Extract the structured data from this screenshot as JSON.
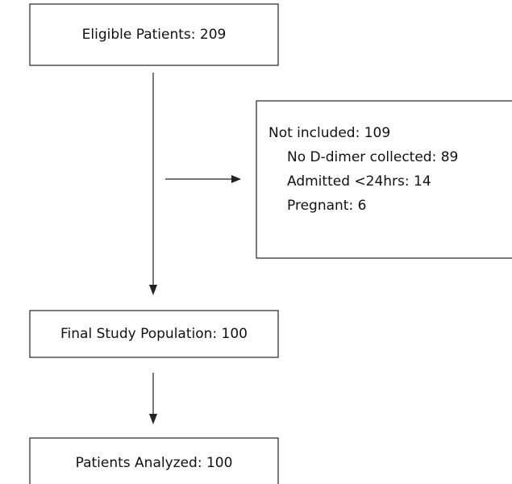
{
  "nodes": [
    {
      "label": "Eligible Patients: 209"
    },
    {
      "label": "Not included: 109",
      "items": [
        "No D-dimer collected: 89",
        "Admitted <24hrs: 14",
        "Pregnant: 6"
      ]
    },
    {
      "label": "Final Study Population: 100"
    },
    {
      "label": "Patients Analyzed: 100"
    }
  ]
}
